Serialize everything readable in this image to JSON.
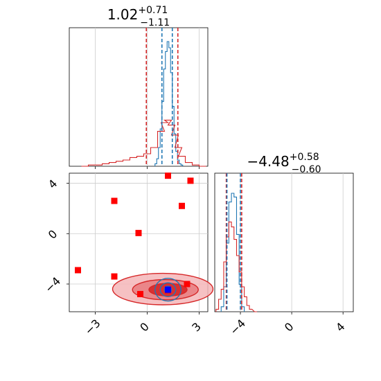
{
  "chart_data": [
    {
      "panel": "hist-param1",
      "type": "histogram",
      "title": {
        "value": "1.02",
        "upper": "+0.71",
        "lower": "−1.11"
      },
      "xlim": [
        -4.5,
        3.5
      ],
      "x_ticks": [
        -3,
        0,
        3
      ],
      "series": [
        {
          "color": "#1f77b4",
          "x": [
            0.5,
            0.6,
            0.7,
            0.8,
            0.9,
            1.0,
            1.1,
            1.2,
            1.3,
            1.4,
            1.5,
            1.6,
            1.7,
            1.8,
            1.9,
            2.0
          ],
          "values": [
            0.02,
            0.06,
            0.15,
            0.3,
            0.52,
            0.78,
            0.92,
            1.0,
            0.95,
            0.75,
            0.48,
            0.26,
            0.12,
            0.05,
            0.02,
            0.01
          ]
        },
        {
          "color": "#d62728",
          "x": [
            -3.6,
            -3.2,
            -2.8,
            -2.4,
            -2.0,
            -1.6,
            -1.2,
            -0.8,
            -0.4,
            0.0,
            0.4,
            0.8,
            1.0,
            1.2,
            1.4,
            1.6,
            1.8,
            2.0,
            2.4,
            2.8,
            3.2
          ],
          "values": [
            0.0,
            0.01,
            0.01,
            0.02,
            0.03,
            0.04,
            0.05,
            0.07,
            0.08,
            0.1,
            0.15,
            0.28,
            0.35,
            0.37,
            0.33,
            0.25,
            0.15,
            0.08,
            0.03,
            0.01,
            0.0
          ]
        }
      ],
      "quantile_lines": [
        {
          "color": "#d62728",
          "x": [
            -0.05,
            1.77
          ]
        },
        {
          "color": "#1f77b4",
          "x": [
            0.85,
            1.45
          ]
        }
      ]
    },
    {
      "panel": "hist-param2",
      "type": "histogram",
      "title": {
        "value": "−4.48",
        "upper": "+0.58",
        "lower": "−0.60"
      },
      "xlim": [
        -6.0,
        4.8
      ],
      "x_ticks": [
        -4,
        0,
        4
      ],
      "x_tick_labels": [
        "−4",
        "0",
        "4"
      ],
      "series": [
        {
          "color": "#1f77b4",
          "x": [
            -5.4,
            -5.2,
            -5.0,
            -4.8,
            -4.6,
            -4.4,
            -4.2,
            -4.0,
            -3.8
          ],
          "values": [
            0.04,
            0.2,
            0.55,
            0.88,
            0.95,
            0.92,
            0.62,
            0.22,
            0.04
          ]
        },
        {
          "color": "#d62728",
          "x": [
            -5.8,
            -5.6,
            -5.4,
            -5.2,
            -5.0,
            -4.8,
            -4.6,
            -4.4,
            -4.2,
            -4.0,
            -3.8,
            -3.6,
            -3.4,
            -3.2,
            -2.8
          ],
          "values": [
            0.02,
            0.1,
            0.18,
            0.4,
            0.6,
            0.72,
            0.68,
            0.58,
            0.45,
            0.32,
            0.2,
            0.12,
            0.05,
            0.02,
            0.0
          ]
        }
      ],
      "quantile_lines": [
        {
          "color": "#d62728",
          "x": [
            -5.1,
            -3.9
          ]
        },
        {
          "color": "#1f77b4",
          "x": [
            -5.05,
            -4.0
          ]
        }
      ]
    },
    {
      "panel": "scatter-2d",
      "type": "scatter",
      "xlim": [
        -4.5,
        3.5
      ],
      "ylim": [
        -6.2,
        4.8
      ],
      "x_ticks": [
        -3,
        0,
        3
      ],
      "y_ticks": [
        4,
        0,
        -4
      ],
      "x_tick_labels": [
        "−3",
        "0",
        "3"
      ],
      "y_tick_labels": [
        "4",
        "0",
        "−4"
      ],
      "red_points": [
        [
          -4.0,
          -2.9
        ],
        [
          -1.9,
          2.6
        ],
        [
          -1.9,
          -3.4
        ],
        [
          -0.5,
          0.05
        ],
        [
          -0.4,
          -4.8
        ],
        [
          1.2,
          4.6
        ],
        [
          2.0,
          2.2
        ],
        [
          2.5,
          4.2
        ],
        [
          2.3,
          -4.0
        ],
        [
          1.2,
          -4.5
        ]
      ],
      "blue_point": [
        1.2,
        -4.45
      ],
      "red_contours": [
        {
          "cx": 0.9,
          "cy": -4.4,
          "rx": 2.9,
          "ry": 1.25
        },
        {
          "cx": 1.05,
          "cy": -4.45,
          "rx": 1.9,
          "ry": 0.8
        },
        {
          "cx": 1.2,
          "cy": -4.45,
          "rx": 1.1,
          "ry": 0.5
        }
      ],
      "blue_contours": [
        {
          "cx": 1.2,
          "cy": -4.45,
          "rx": 0.75,
          "ry": 0.9
        },
        {
          "cx": 1.2,
          "cy": -4.45,
          "rx": 0.45,
          "ry": 0.55
        },
        {
          "cx": 1.2,
          "cy": -4.45,
          "rx": 0.2,
          "ry": 0.28
        }
      ]
    }
  ]
}
